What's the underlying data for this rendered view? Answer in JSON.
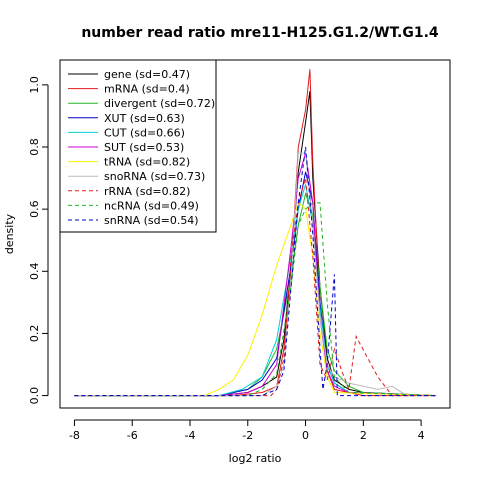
{
  "chart_data": {
    "type": "line",
    "title": "number read ratio mre11-H125.G1.2/WT.G1.4",
    "xlabel": "log2 ratio",
    "ylabel": "density",
    "xlim": [
      -8.5,
      5.0
    ],
    "ylim": [
      -0.04,
      1.08
    ],
    "x_ticks": [
      -8,
      -6,
      -4,
      -2,
      0,
      2,
      4
    ],
    "x_tick_labels": [
      "-8",
      "-6",
      "-4",
      "-2",
      "0",
      "2",
      "4"
    ],
    "y_ticks": [
      0.0,
      0.2,
      0.4,
      0.6,
      0.8,
      1.0
    ],
    "y_tick_labels": [
      "0.0",
      "0.2",
      "0.4",
      "0.6",
      "0.8",
      "1.0"
    ],
    "grid": false,
    "legend_position": "top-left",
    "series": [
      {
        "name": "gene (sd=0.47)",
        "color": "#000000",
        "dash": "solid",
        "points": [
          [
            -8,
            0
          ],
          [
            -3,
            0
          ],
          [
            -2,
            0.01
          ],
          [
            -1.5,
            0.03
          ],
          [
            -1,
            0.06
          ],
          [
            -0.75,
            0.18
          ],
          [
            -0.5,
            0.42
          ],
          [
            -0.25,
            0.72
          ],
          [
            0,
            0.88
          ],
          [
            0.15,
            0.98
          ],
          [
            0.25,
            0.7
          ],
          [
            0.5,
            0.35
          ],
          [
            0.75,
            0.12
          ],
          [
            1,
            0.05
          ],
          [
            1.5,
            0.02
          ],
          [
            2,
            0.01
          ],
          [
            4.5,
            0
          ]
        ]
      },
      {
        "name": "mRNA (sd=0.4)",
        "color": "#e41a1c",
        "dash": "solid",
        "points": [
          [
            -8,
            0
          ],
          [
            -2.5,
            0
          ],
          [
            -1.5,
            0.01
          ],
          [
            -1,
            0.03
          ],
          [
            -0.75,
            0.15
          ],
          [
            -0.5,
            0.4
          ],
          [
            -0.25,
            0.8
          ],
          [
            0,
            0.92
          ],
          [
            0.15,
            1.05
          ],
          [
            0.25,
            0.75
          ],
          [
            0.5,
            0.3
          ],
          [
            0.75,
            0.08
          ],
          [
            1,
            0.02
          ],
          [
            2,
            0
          ],
          [
            4.5,
            0
          ]
        ]
      },
      {
        "name": "divergent (sd=0.72)",
        "color": "#22b922",
        "dash": "solid",
        "points": [
          [
            -8,
            0
          ],
          [
            -3,
            0
          ],
          [
            -2,
            0.02
          ],
          [
            -1.5,
            0.06
          ],
          [
            -1,
            0.15
          ],
          [
            -0.5,
            0.38
          ],
          [
            -0.25,
            0.55
          ],
          [
            0,
            0.65
          ],
          [
            0.25,
            0.58
          ],
          [
            0.5,
            0.35
          ],
          [
            0.75,
            0.15
          ],
          [
            1,
            0.08
          ],
          [
            1.5,
            0.03
          ],
          [
            2,
            0.01
          ],
          [
            4.5,
            0
          ]
        ]
      },
      {
        "name": "XUT (sd=0.63)",
        "color": "#0000cd",
        "dash": "solid",
        "points": [
          [
            -8,
            0
          ],
          [
            -3,
            0
          ],
          [
            -2,
            0.02
          ],
          [
            -1.5,
            0.05
          ],
          [
            -1,
            0.12
          ],
          [
            -0.5,
            0.42
          ],
          [
            -0.25,
            0.6
          ],
          [
            0,
            0.72
          ],
          [
            0.25,
            0.62
          ],
          [
            0.5,
            0.3
          ],
          [
            0.75,
            0.1
          ],
          [
            1,
            0.04
          ],
          [
            1.5,
            0.01
          ],
          [
            4.5,
            0
          ]
        ]
      },
      {
        "name": "CUT (sd=0.66)",
        "color": "#00d0d0",
        "dash": "solid",
        "points": [
          [
            -8,
            0
          ],
          [
            -3,
            0
          ],
          [
            -2.2,
            0.02
          ],
          [
            -1.5,
            0.06
          ],
          [
            -1,
            0.18
          ],
          [
            -0.5,
            0.45
          ],
          [
            -0.25,
            0.6
          ],
          [
            0,
            0.68
          ],
          [
            0.25,
            0.55
          ],
          [
            0.5,
            0.28
          ],
          [
            0.75,
            0.1
          ],
          [
            1,
            0.04
          ],
          [
            1.5,
            0.01
          ],
          [
            4.5,
            0
          ]
        ]
      },
      {
        "name": "SUT (sd=0.53)",
        "color": "#cc00cc",
        "dash": "solid",
        "points": [
          [
            -8,
            0
          ],
          [
            -3,
            0
          ],
          [
            -2,
            0.01
          ],
          [
            -1.5,
            0.03
          ],
          [
            -1,
            0.1
          ],
          [
            -0.5,
            0.48
          ],
          [
            -0.25,
            0.7
          ],
          [
            0,
            0.78
          ],
          [
            0.25,
            0.62
          ],
          [
            0.5,
            0.25
          ],
          [
            0.75,
            0.08
          ],
          [
            1,
            0.03
          ],
          [
            1.5,
            0.01
          ],
          [
            4.5,
            0
          ]
        ]
      },
      {
        "name": "tRNA (sd=0.82)",
        "color": "#ffee00",
        "dash": "solid",
        "points": [
          [
            -8,
            0
          ],
          [
            -3.5,
            0
          ],
          [
            -3,
            0.02
          ],
          [
            -2.5,
            0.05
          ],
          [
            -2,
            0.13
          ],
          [
            -1.5,
            0.26
          ],
          [
            -1,
            0.42
          ],
          [
            -0.5,
            0.55
          ],
          [
            -0.25,
            0.62
          ],
          [
            0,
            0.6
          ],
          [
            0.25,
            0.45
          ],
          [
            0.5,
            0.2
          ],
          [
            0.75,
            0.06
          ],
          [
            1,
            0.01
          ],
          [
            4.5,
            0
          ]
        ]
      },
      {
        "name": "snoRNA (sd=0.73)",
        "color": "#bbbbbb",
        "dash": "solid",
        "points": [
          [
            -8,
            0
          ],
          [
            -1.5,
            0
          ],
          [
            -1,
            0.03
          ],
          [
            -0.75,
            0.1
          ],
          [
            -0.5,
            0.38
          ],
          [
            -0.25,
            0.78
          ],
          [
            0,
            0.78
          ],
          [
            0.25,
            0.55
          ],
          [
            0.5,
            0.25
          ],
          [
            0.75,
            0.1
          ],
          [
            1,
            0.06
          ],
          [
            1.5,
            0.04
          ],
          [
            2,
            0.03
          ],
          [
            2.5,
            0.02
          ],
          [
            3,
            0.03
          ],
          [
            3.5,
            0
          ],
          [
            4.5,
            0
          ]
        ]
      },
      {
        "name": "rRNA (sd=0.82)",
        "color": "#e41a1c",
        "dash": "dashed",
        "points": [
          [
            -8,
            0
          ],
          [
            -1.2,
            0
          ],
          [
            -1,
            0.02
          ],
          [
            -0.75,
            0.12
          ],
          [
            -0.5,
            0.45
          ],
          [
            -0.25,
            0.62
          ],
          [
            0,
            0.7
          ],
          [
            0.25,
            0.45
          ],
          [
            0.5,
            0.1
          ],
          [
            0.75,
            0.05
          ],
          [
            1,
            0.15
          ],
          [
            1.25,
            0.08
          ],
          [
            1.5,
            0.02
          ],
          [
            1.75,
            0.19
          ],
          [
            2.5,
            0.06
          ],
          [
            3,
            0
          ],
          [
            4.5,
            0
          ]
        ]
      },
      {
        "name": "ncRNA (sd=0.49)",
        "color": "#22b922",
        "dash": "dashed",
        "points": [
          [
            -8,
            0
          ],
          [
            -2,
            0
          ],
          [
            -1.5,
            0.02
          ],
          [
            -1,
            0.07
          ],
          [
            -0.5,
            0.35
          ],
          [
            -0.25,
            0.55
          ],
          [
            0,
            0.6
          ],
          [
            0.25,
            0.62
          ],
          [
            0.5,
            0.62
          ],
          [
            0.75,
            0.3
          ],
          [
            1,
            0.06
          ],
          [
            1.5,
            0.01
          ],
          [
            4.5,
            0
          ]
        ]
      },
      {
        "name": "snRNA (sd=0.54)",
        "color": "#0000cd",
        "dash": "dashed",
        "points": [
          [
            -8,
            0
          ],
          [
            -1.5,
            0
          ],
          [
            -1,
            0.02
          ],
          [
            -0.75,
            0.08
          ],
          [
            -0.5,
            0.35
          ],
          [
            -0.25,
            0.62
          ],
          [
            0,
            0.8
          ],
          [
            0.25,
            0.52
          ],
          [
            0.5,
            0.15
          ],
          [
            0.6,
            0.02
          ],
          [
            0.75,
            0.1
          ],
          [
            1,
            0.39
          ],
          [
            1.1,
            0
          ],
          [
            4.5,
            0
          ]
        ]
      }
    ]
  }
}
